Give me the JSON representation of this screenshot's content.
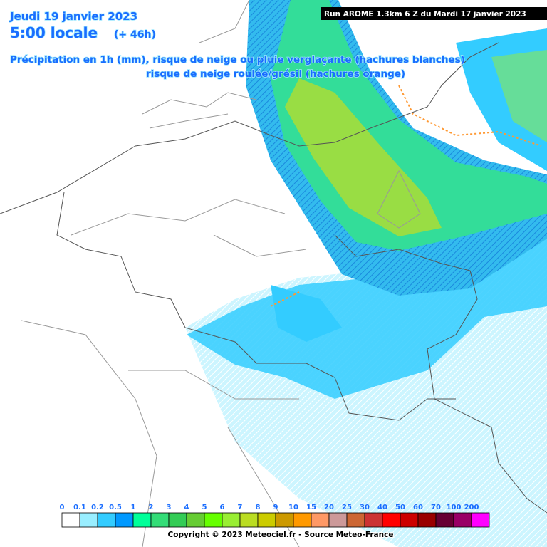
{
  "header": {
    "date": "Jeudi 19 janvier 2023",
    "time": "5:00 locale",
    "lead": "(+ 46h)",
    "description": [
      "Précipitation en 1h (mm), risque de neige ou pluie verglaçante (hachures blanches)",
      "risque de neige roulée/grésil (hachures orange)"
    ],
    "run": "Run AROME 1.3km 6 Z du Mardi 17 janvier 2023"
  },
  "legend": {
    "labels": [
      "0",
      "0.1",
      "0.2",
      "0.5",
      "1",
      "2",
      "3",
      "4",
      "5",
      "6",
      "7",
      "8",
      "9",
      "10",
      "15",
      "20",
      "25",
      "30",
      "40",
      "50",
      "60",
      "70",
      "100",
      "200"
    ],
    "colors": [
      "#ffffff",
      "#99eeff",
      "#33ccff",
      "#0099ff",
      "#00ff99",
      "#33dd77",
      "#33cc55",
      "#66cc33",
      "#66ff00",
      "#99ee33",
      "#bbdd22",
      "#cccc00",
      "#cc9900",
      "#ff9900",
      "#ff9966",
      "#cc9999",
      "#cc6633",
      "#cc3333",
      "#ff0000",
      "#cc0000",
      "#990000",
      "#660033",
      "#990066",
      "#ff00ff"
    ]
  },
  "footer": {
    "copyright": "Copyright © 2023 Meteociel.fr - Source Meteo-France"
  }
}
